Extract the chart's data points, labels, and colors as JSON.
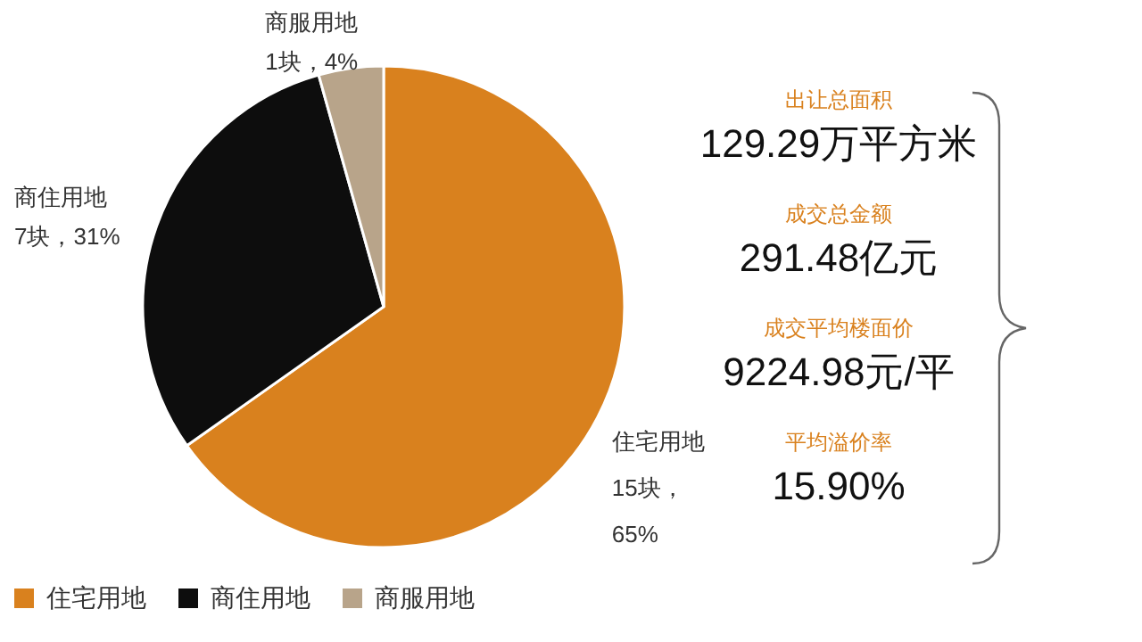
{
  "chart_data": [
    {
      "type": "pie",
      "categories": [
        "住宅用地",
        "商住用地",
        "商服用地"
      ],
      "values": [
        15,
        7,
        1
      ],
      "value_labels": [
        "15块，65%",
        "7块，31%",
        "1块，4%"
      ],
      "colors": [
        "#d9811e",
        "#0d0d0d",
        "#b8a48a"
      ],
      "legend": "bottom left"
    },
    {
      "type": "other",
      "annotations": [
        "出让总面积",
        "129.29万平方米",
        "成交总金额",
        "291.48亿元",
        "成交平均楼面价",
        "9224.98元/平",
        "平均溢价率",
        "15.90%"
      ]
    }
  ]
}
